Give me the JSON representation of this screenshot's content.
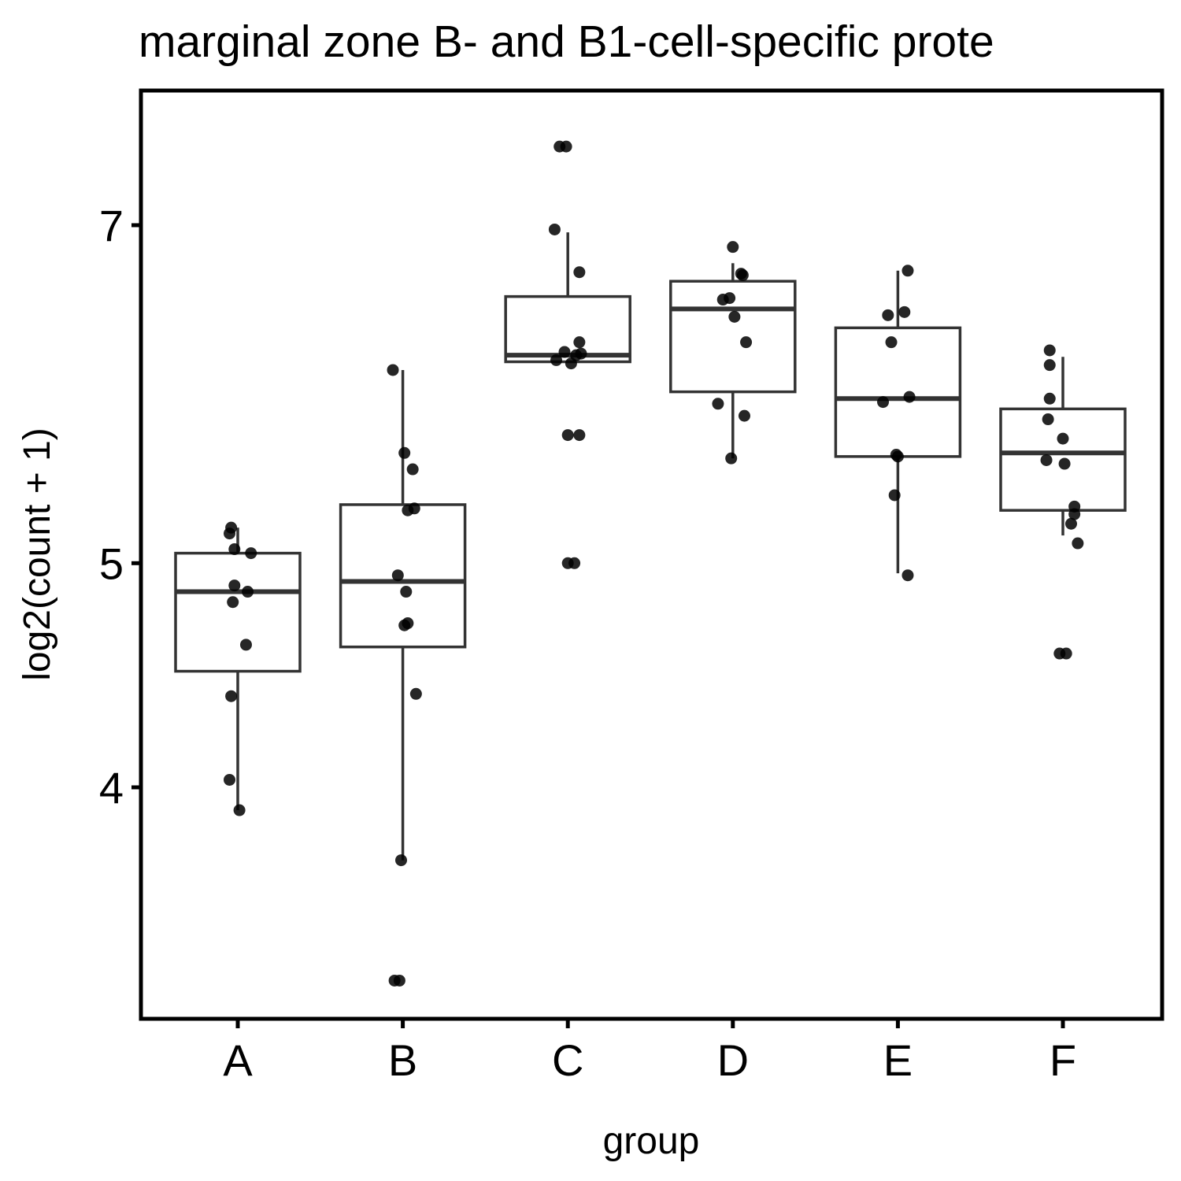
{
  "chart_data": {
    "type": "box",
    "title": "marginal zone B- and B1-cell-specific prote",
    "xlabel": "group",
    "ylabel": "log2(count + 1)",
    "y_scale": "log",
    "ylim": [
      3.2,
      7.7
    ],
    "yticks": [
      4,
      5,
      7
    ],
    "ytick_labels": [
      "4",
      "5",
      "7"
    ],
    "categories": [
      "A",
      "B",
      "C",
      "D",
      "E",
      "F"
    ],
    "grid": false,
    "box_stats": [
      {
        "group": "A",
        "lower_whisker": 3.91,
        "q1": 4.49,
        "median": 4.86,
        "q3": 5.05,
        "upper_whisker": 5.18
      },
      {
        "group": "B",
        "lower_whisker": 3.72,
        "q1": 4.6,
        "median": 4.91,
        "q3": 5.3,
        "upper_whisker": 6.06
      },
      {
        "group": "C",
        "lower_whisker": 6.11,
        "q1": 6.11,
        "median": 6.15,
        "q3": 6.52,
        "upper_whisker": 6.95
      },
      {
        "group": "D",
        "lower_whisker": 5.55,
        "q1": 5.93,
        "median": 6.44,
        "q3": 6.62,
        "upper_whisker": 6.74
      },
      {
        "group": "E",
        "lower_whisker": 4.95,
        "q1": 5.56,
        "median": 5.89,
        "q3": 6.32,
        "upper_whisker": 6.69
      },
      {
        "group": "F",
        "lower_whisker": 5.14,
        "q1": 5.27,
        "median": 5.58,
        "q3": 5.83,
        "upper_whisker": 6.14
      }
    ],
    "points": [
      {
        "group": "A",
        "x_jitter": -0.04,
        "y": 5.18
      },
      {
        "group": "A",
        "x_jitter": -0.05,
        "y": 5.15
      },
      {
        "group": "A",
        "x_jitter": -0.02,
        "y": 5.07
      },
      {
        "group": "A",
        "x_jitter": 0.08,
        "y": 5.05
      },
      {
        "group": "A",
        "x_jitter": -0.02,
        "y": 4.89
      },
      {
        "group": "A",
        "x_jitter": 0.06,
        "y": 4.86
      },
      {
        "group": "A",
        "x_jitter": -0.03,
        "y": 4.81
      },
      {
        "group": "A",
        "x_jitter": 0.05,
        "y": 4.61
      },
      {
        "group": "A",
        "x_jitter": -0.04,
        "y": 4.38
      },
      {
        "group": "A",
        "x_jitter": -0.05,
        "y": 4.03
      },
      {
        "group": "A",
        "x_jitter": 0.01,
        "y": 3.91
      },
      {
        "group": "B",
        "x_jitter": -0.06,
        "y": 6.06
      },
      {
        "group": "B",
        "x_jitter": 0.01,
        "y": 5.58
      },
      {
        "group": "B",
        "x_jitter": 0.06,
        "y": 5.49
      },
      {
        "group": "B",
        "x_jitter": 0.07,
        "y": 5.28
      },
      {
        "group": "B",
        "x_jitter": 0.03,
        "y": 5.27
      },
      {
        "group": "B",
        "x_jitter": -0.03,
        "y": 4.94
      },
      {
        "group": "B",
        "x_jitter": 0.02,
        "y": 4.86
      },
      {
        "group": "B",
        "x_jitter": 0.03,
        "y": 4.71
      },
      {
        "group": "B",
        "x_jitter": 0.01,
        "y": 4.7
      },
      {
        "group": "B",
        "x_jitter": 0.08,
        "y": 4.39
      },
      {
        "group": "B",
        "x_jitter": -0.01,
        "y": 3.72
      },
      {
        "group": "B",
        "x_jitter": -0.05,
        "y": 3.3
      },
      {
        "group": "B",
        "x_jitter": -0.02,
        "y": 3.3
      },
      {
        "group": "C",
        "x_jitter": -0.05,
        "y": 7.57
      },
      {
        "group": "C",
        "x_jitter": -0.01,
        "y": 7.57
      },
      {
        "group": "C",
        "x_jitter": -0.08,
        "y": 6.97
      },
      {
        "group": "C",
        "x_jitter": 0.07,
        "y": 6.68
      },
      {
        "group": "C",
        "x_jitter": 0.07,
        "y": 6.23
      },
      {
        "group": "C",
        "x_jitter": -0.02,
        "y": 6.17
      },
      {
        "group": "C",
        "x_jitter": 0.08,
        "y": 6.16
      },
      {
        "group": "C",
        "x_jitter": 0.05,
        "y": 6.15
      },
      {
        "group": "C",
        "x_jitter": -0.07,
        "y": 6.12
      },
      {
        "group": "C",
        "x_jitter": 0.02,
        "y": 6.1
      },
      {
        "group": "C",
        "x_jitter": 0.07,
        "y": 5.68
      },
      {
        "group": "C",
        "x_jitter": 0.0,
        "y": 5.68
      },
      {
        "group": "C",
        "x_jitter": 0.0,
        "y": 5.0
      },
      {
        "group": "C",
        "x_jitter": 0.04,
        "y": 5.0
      },
      {
        "group": "D",
        "x_jitter": 0.0,
        "y": 6.85
      },
      {
        "group": "D",
        "x_jitter": 0.05,
        "y": 6.67
      },
      {
        "group": "D",
        "x_jitter": 0.06,
        "y": 6.66
      },
      {
        "group": "D",
        "x_jitter": -0.06,
        "y": 6.5
      },
      {
        "group": "D",
        "x_jitter": -0.02,
        "y": 6.51
      },
      {
        "group": "D",
        "x_jitter": 0.01,
        "y": 6.39
      },
      {
        "group": "D",
        "x_jitter": 0.08,
        "y": 6.23
      },
      {
        "group": "D",
        "x_jitter": -0.09,
        "y": 5.86
      },
      {
        "group": "D",
        "x_jitter": 0.07,
        "y": 5.79
      },
      {
        "group": "D",
        "x_jitter": -0.01,
        "y": 5.55
      },
      {
        "group": "E",
        "x_jitter": 0.06,
        "y": 6.69
      },
      {
        "group": "E",
        "x_jitter": 0.04,
        "y": 6.42
      },
      {
        "group": "E",
        "x_jitter": -0.06,
        "y": 6.4
      },
      {
        "group": "E",
        "x_jitter": -0.04,
        "y": 6.23
      },
      {
        "group": "E",
        "x_jitter": 0.07,
        "y": 5.9
      },
      {
        "group": "E",
        "x_jitter": -0.09,
        "y": 5.87
      },
      {
        "group": "E",
        "x_jitter": -0.01,
        "y": 5.57
      },
      {
        "group": "E",
        "x_jitter": 0.0,
        "y": 5.56
      },
      {
        "group": "E",
        "x_jitter": -0.02,
        "y": 5.35
      },
      {
        "group": "E",
        "x_jitter": 0.06,
        "y": 4.94
      },
      {
        "group": "F",
        "x_jitter": -0.08,
        "y": 6.18
      },
      {
        "group": "F",
        "x_jitter": -0.08,
        "y": 6.09
      },
      {
        "group": "F",
        "x_jitter": -0.08,
        "y": 5.89
      },
      {
        "group": "F",
        "x_jitter": -0.09,
        "y": 5.77
      },
      {
        "group": "F",
        "x_jitter": 0.0,
        "y": 5.66
      },
      {
        "group": "F",
        "x_jitter": -0.1,
        "y": 5.54
      },
      {
        "group": "F",
        "x_jitter": 0.01,
        "y": 5.52
      },
      {
        "group": "F",
        "x_jitter": 0.07,
        "y": 5.29
      },
      {
        "group": "F",
        "x_jitter": 0.07,
        "y": 5.25
      },
      {
        "group": "F",
        "x_jitter": 0.05,
        "y": 5.2
      },
      {
        "group": "F",
        "x_jitter": 0.09,
        "y": 5.1
      },
      {
        "group": "F",
        "x_jitter": 0.02,
        "y": 4.57
      },
      {
        "group": "F",
        "x_jitter": -0.02,
        "y": 4.57
      }
    ],
    "colors": {
      "box_line": "#333333",
      "point": "#000000",
      "frame": "#000000"
    }
  }
}
